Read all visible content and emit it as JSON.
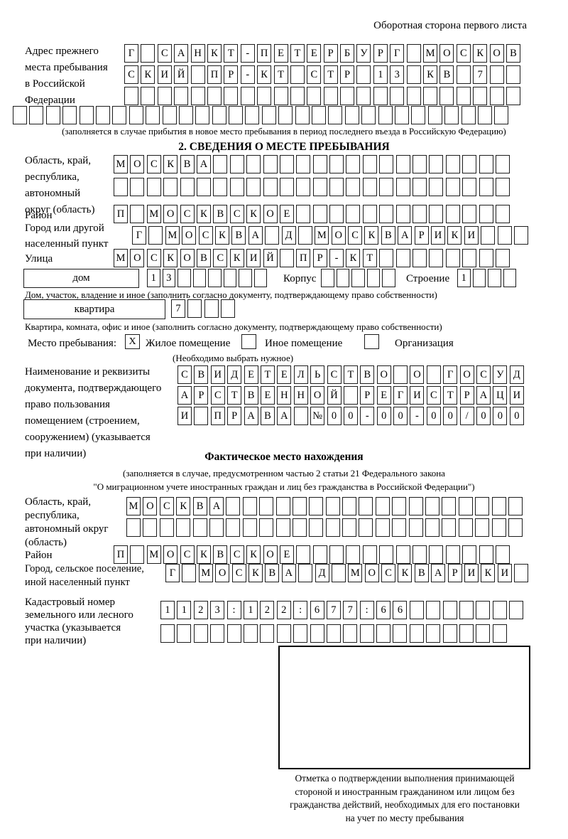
{
  "page": {
    "header_note": "Оборотная сторона первого листа"
  },
  "prev_address": {
    "label": "Адрес прежнего\nместа пребывания\nв Российской\nФедерации",
    "r1": [
      "Г",
      "",
      "С",
      "А",
      "Н",
      "К",
      "Т",
      "-",
      "П",
      "Е",
      "Т",
      "Е",
      "Р",
      "Б",
      "У",
      "Р",
      "Г",
      "",
      "М",
      "О",
      "С",
      "К",
      "О",
      "В"
    ],
    "r2": [
      "С",
      "К",
      "И",
      "Й",
      "",
      "П",
      "Р",
      "-",
      "К",
      "Т",
      "",
      "С",
      "Т",
      "Р",
      "",
      "1",
      "3",
      "",
      "К",
      "В",
      "",
      "7",
      "",
      ""
    ],
    "r3": [
      "",
      "",
      "",
      "",
      "",
      "",
      "",
      "",
      "",
      "",
      "",
      "",
      "",
      "",
      "",
      "",
      "",
      "",
      "",
      "",
      "",
      "",
      "",
      ""
    ],
    "r4": [
      "",
      "",
      "",
      "",
      "",
      "",
      "",
      "",
      "",
      "",
      "",
      "",
      "",
      "",
      "",
      "",
      "",
      "",
      "",
      "",
      "",
      "",
      "",
      "",
      "",
      "",
      "",
      "",
      "",
      ""
    ],
    "note": "(заполняется в случае прибытия в новое место пребывания в период последнего въезда в Российскую Федерацию)"
  },
  "section2": {
    "title": "2. СВЕДЕНИЯ О МЕСТЕ ПРЕБЫВАНИЯ",
    "oblast_label": "Область, край,\nреспублика,\nавтономный\nокруг (область)",
    "oblast_r1": [
      "М",
      "О",
      "С",
      "К",
      "В",
      "А",
      "",
      "",
      "",
      "",
      "",
      "",
      "",
      "",
      "",
      "",
      "",
      "",
      "",
      "",
      "",
      "",
      "",
      ""
    ],
    "oblast_r2": [
      "",
      "",
      "",
      "",
      "",
      "",
      "",
      "",
      "",
      "",
      "",
      "",
      "",
      "",
      "",
      "",
      "",
      "",
      "",
      "",
      "",
      "",
      "",
      ""
    ],
    "rayon_label": "Район",
    "rayon": [
      "П",
      "",
      "М",
      "О",
      "С",
      "К",
      "В",
      "С",
      "К",
      "О",
      "Е",
      "",
      "",
      "",
      "",
      "",
      "",
      "",
      "",
      "",
      "",
      "",
      "",
      ""
    ],
    "gorod_label": "Город или другой\nнаселенный пункт",
    "gorod": [
      "Г",
      "",
      "М",
      "О",
      "С",
      "К",
      "В",
      "А",
      "",
      "Д",
      "",
      "М",
      "О",
      "С",
      "К",
      "В",
      "А",
      "Р",
      "И",
      "К",
      "И",
      "",
      "",
      ""
    ],
    "ulitsa_label": "Улица",
    "ulitsa": [
      "М",
      "О",
      "С",
      "К",
      "О",
      "В",
      "С",
      "К",
      "И",
      "Й",
      "",
      "П",
      "Р",
      "-",
      "К",
      "Т",
      "",
      "",
      "",
      "",
      "",
      "",
      "",
      ""
    ],
    "dom_label": "дом",
    "dom_cells": [
      "1",
      "3",
      "",
      "",
      "",
      "",
      "",
      ""
    ],
    "korpus_label": "Корпус",
    "korpus_cells": [
      "",
      "",
      "",
      "",
      ""
    ],
    "stroenie_label": "Строение",
    "stroenie_cells": [
      "1",
      "",
      "",
      ""
    ],
    "dom_caption": "Дом, участок, владение и иное (заполнить согласно документу, подтверждающему право собственности)",
    "kvartira_label": "квартира",
    "kvartira_cells": [
      "7",
      "",
      "",
      ""
    ],
    "kvartira_caption": "Квартира, комната, офис и иное (заполнить согласно документу, подтверждающему право собственности)",
    "mesto_label": "Место пребывания:",
    "mesto_options": [
      {
        "checked": "X",
        "label": "Жилое помещение"
      },
      {
        "checked": "",
        "label": "Иное помещение"
      },
      {
        "checked": "",
        "label": "Организация"
      }
    ],
    "mesto_note": "(Необходимо выбрать нужное)",
    "doc_label": "Наименование и реквизиты\nдокумента, подтверждающего\nправо пользования\nпомещением (строением,\nсооружением) (указывается\nпри наличии)",
    "doc_r1": [
      "С",
      "В",
      "И",
      "Д",
      "Е",
      "Т",
      "Е",
      "Л",
      "Ь",
      "С",
      "Т",
      "В",
      "О",
      "",
      "О",
      "",
      "Г",
      "О",
      "С",
      "У",
      "Д"
    ],
    "doc_r2": [
      "А",
      "Р",
      "С",
      "Т",
      "В",
      "Е",
      "Н",
      "Н",
      "О",
      "Й",
      "",
      "Р",
      "Е",
      "Г",
      "И",
      "С",
      "Т",
      "Р",
      "А",
      "Ц",
      "И"
    ],
    "doc_r3": [
      "И",
      "",
      "П",
      "Р",
      "А",
      "В",
      "А",
      "",
      "№",
      "0",
      "0",
      "-",
      "0",
      "0",
      "-",
      "0",
      "0",
      "/",
      "0",
      "0",
      "0"
    ]
  },
  "fact": {
    "title": "Фактическое место нахождения",
    "note1": "(заполняется в случае, предусмотренном частью 2 статьи 21 Федерального закона",
    "note2": "\"О миграционном учете иностранных граждан и лиц без гражданства в Российской Федерации\")",
    "oblast_label": "Область, край,\nреспублика,\nавтономный округ\n(область)",
    "oblast_r1": [
      "М",
      "О",
      "С",
      "К",
      "В",
      "А",
      "",
      "",
      "",
      "",
      "",
      "",
      "",
      "",
      "",
      "",
      "",
      "",
      "",
      "",
      "",
      "",
      "",
      ""
    ],
    "oblast_r2": [
      "",
      "",
      "",
      "",
      "",
      "",
      "",
      "",
      "",
      "",
      "",
      "",
      "",
      "",
      "",
      "",
      "",
      "",
      "",
      "",
      "",
      "",
      "",
      ""
    ],
    "rayon_label": "Район",
    "rayon": [
      "П",
      "",
      "М",
      "О",
      "С",
      "К",
      "В",
      "С",
      "К",
      "О",
      "Е",
      "",
      "",
      "",
      "",
      "",
      "",
      "",
      "",
      "",
      "",
      "",
      "",
      ""
    ],
    "gorod_label": "Город, сельское поселение,\nиной населенный пункт",
    "gorod": [
      "Г",
      "",
      "М",
      "О",
      "С",
      "К",
      "В",
      "А",
      "",
      "Д",
      "",
      "М",
      "О",
      "С",
      "К",
      "В",
      "А",
      "Р",
      "И",
      "К",
      "И",
      ""
    ],
    "kadastr_label": "Кадастровый номер\nземельного или лесного\nучастка (указывается\nпри наличии)",
    "kadastr_r1": [
      "1",
      "1",
      "2",
      "3",
      ":",
      "1",
      "2",
      "2",
      ":",
      "6",
      "7",
      "7",
      ":",
      "6",
      "6",
      "",
      "",
      "",
      "",
      "",
      "",
      ""
    ],
    "kadastr_r2": [
      "",
      "",
      "",
      "",
      "",
      "",
      "",
      "",
      "",
      "",
      "",
      "",
      "",
      "",
      "",
      "",
      "",
      "",
      "",
      "",
      ""
    ],
    "stamp_caption": "Отметка о подтверждении выполнения принимающей\nстороной и иностранным гражданином или лицом без\nгражданства действий, необходимых для его постановки\nна учет по месту пребывания"
  }
}
